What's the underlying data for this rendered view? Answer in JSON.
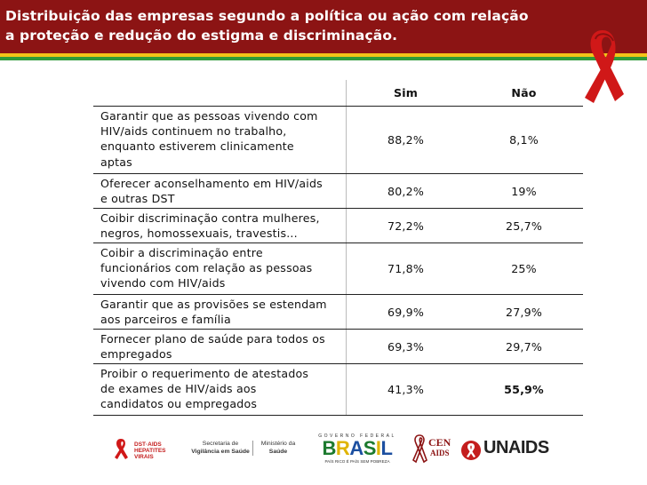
{
  "title": {
    "line1": "Distribuição das empresas segundo a política ou ação com relação",
    "line2": "a proteção e redução do estigma e discriminação."
  },
  "table": {
    "headers": [
      "",
      "Sim",
      "Não"
    ],
    "rows": [
      {
        "lines": [
          "Garantir que as pessoas vivendo com",
          "HIV/aids continuem no trabalho,",
          "enquanto estiverem clinicamente",
          "aptas"
        ],
        "sim": "88,2%",
        "nao": "8,1%"
      },
      {
        "lines": [
          "Oferecer aconselhamento em HIV/aids",
          "e outras DST"
        ],
        "sim": "80,2%",
        "nao": "19%"
      },
      {
        "lines": [
          "Coibir discriminação contra mulheres,",
          "negros, homossexuais, travestis..."
        ],
        "sim": "72,2%",
        "nao": "25,7%"
      },
      {
        "lines": [
          "Coibir a discriminação entre",
          "funcionários com relação as pessoas",
          "vivendo com HIV/aids"
        ],
        "sim": "71,8%",
        "nao": "25%"
      },
      {
        "lines": [
          "Garantir que as provisões se estendam",
          "aos parceiros e família"
        ],
        "sim": "69,9%",
        "nao": "27,9%"
      },
      {
        "lines": [
          "Fornecer plano de saúde para todos os",
          "empregados"
        ],
        "sim": "69,3%",
        "nao": "29,7%"
      },
      {
        "lines": [
          "Proibir o requerimento de atestados",
          "de exames de HIV/aids  aos",
          "candidatos ou empregados"
        ],
        "sim": "41,3%",
        "nao": "55,9%"
      }
    ]
  },
  "logos": {
    "dst": {
      "line1": "DST·AIDS",
      "line2": "HEPATITES VIRAIS"
    },
    "secretaria": {
      "line1": "Secretaria de",
      "line2": "Vigilância em Saúde"
    },
    "ministerio": {
      "line1": "Ministério da",
      "line2": "Saúde"
    },
    "brasil": {
      "top": "GOVERNO FEDERAL",
      "word": "BRASIL",
      "slogan": "PAÍS RICO É PAÍS SEM POBREZA"
    },
    "cen": {
      "line1": "CEN",
      "line2": "AIDS"
    },
    "unaids": "UNAIDS"
  },
  "colors": {
    "header_bg": "#8c1414",
    "stripe_yellow": "#f2c418",
    "stripe_green": "#2f9b3a",
    "ribbon": "#d01818"
  }
}
